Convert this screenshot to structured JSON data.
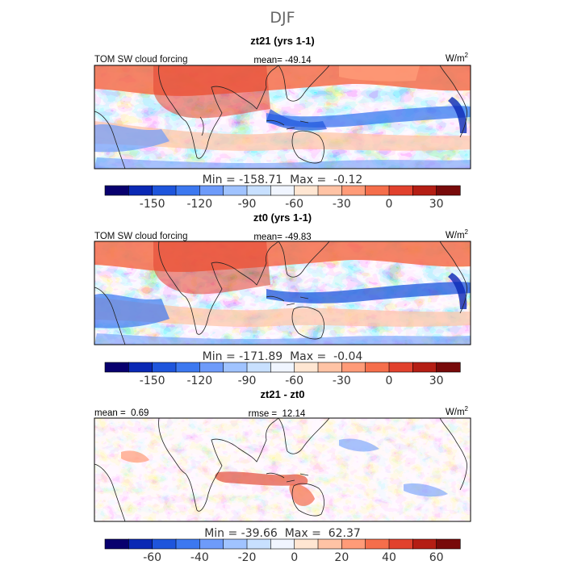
{
  "title": "DJF",
  "units_label": "W/m",
  "units_exp": "2",
  "panels": [
    {
      "id": "zt21",
      "title": "zt21 (yrs 1-1)",
      "left_label": "TOM SW cloud forcing",
      "center_label": "mean= -49.14",
      "min_max": "Min = -158.71  Max =  -0.12",
      "field": "absolute",
      "colorbar": "absolute"
    },
    {
      "id": "zt0",
      "title": "zt0 (yrs 1-1)",
      "left_label": "TOM SW cloud forcing",
      "center_label": "mean= -49.83",
      "min_max": "Min = -171.89  Max =  -0.04",
      "field": "absolute",
      "colorbar": "absolute"
    },
    {
      "id": "diff",
      "title": "zt21 - zt0",
      "left_label": "mean =  0.69",
      "center_label": "rmse =  12.14",
      "min_max": "Min = -39.66  Max =  62.37",
      "field": "difference",
      "colorbar": "difference"
    }
  ],
  "colorbars": {
    "absolute": {
      "colors": [
        "#08006e",
        "#0a28b4",
        "#1e55dc",
        "#3c78f0",
        "#6e9bfa",
        "#a0c3ff",
        "#c8e0ff",
        "#f0f5ff",
        "#ffe6d2",
        "#ffc3a5",
        "#ff9b78",
        "#f56e4b",
        "#e1412d",
        "#b41e14",
        "#780a0a"
      ],
      "tick_labels": [
        "-150",
        "-120",
        "-90",
        "-60",
        "-30",
        "0",
        "30"
      ],
      "tick_positions": [
        2,
        4,
        6,
        8,
        10,
        12,
        14
      ]
    },
    "difference": {
      "colors": [
        "#08006e",
        "#0a28b4",
        "#1e55dc",
        "#3c78f0",
        "#6e9bfa",
        "#a0c3ff",
        "#c8e0ff",
        "#f0f5ff",
        "#ffe6d2",
        "#ffc3a5",
        "#ff9b78",
        "#f56e4b",
        "#e1412d",
        "#b41e14",
        "#780a0a"
      ],
      "tick_labels": [
        "-60",
        "-40",
        "-20",
        "0",
        "20",
        "40",
        "60"
      ],
      "tick_positions": [
        2,
        4,
        6,
        8,
        10,
        12,
        14
      ]
    }
  },
  "chart_data": [
    {
      "type": "heatmap",
      "title": "zt21 (yrs 1-1)",
      "variable": "TOM SW cloud forcing",
      "units": "W/m2",
      "mean": -49.14,
      "min": -158.71,
      "max": -0.12,
      "color_levels": [
        -165,
        -150,
        -135,
        -120,
        -105,
        -90,
        -75,
        -60,
        -45,
        -30,
        -15,
        0,
        15,
        30,
        45
      ]
    },
    {
      "type": "heatmap",
      "title": "zt0 (yrs 1-1)",
      "variable": "TOM SW cloud forcing",
      "units": "W/m2",
      "mean": -49.83,
      "min": -171.89,
      "max": -0.04,
      "color_levels": [
        -165,
        -150,
        -135,
        -120,
        -105,
        -90,
        -75,
        -60,
        -45,
        -30,
        -15,
        0,
        15,
        30,
        45
      ]
    },
    {
      "type": "heatmap",
      "title": "zt21 - zt0",
      "units": "W/m2",
      "mean": 0.69,
      "rmse": 12.14,
      "min": -39.66,
      "max": 62.37,
      "color_levels": [
        -70,
        -60,
        -50,
        -40,
        -30,
        -20,
        -10,
        0,
        10,
        20,
        30,
        40,
        50,
        60,
        70
      ]
    }
  ]
}
